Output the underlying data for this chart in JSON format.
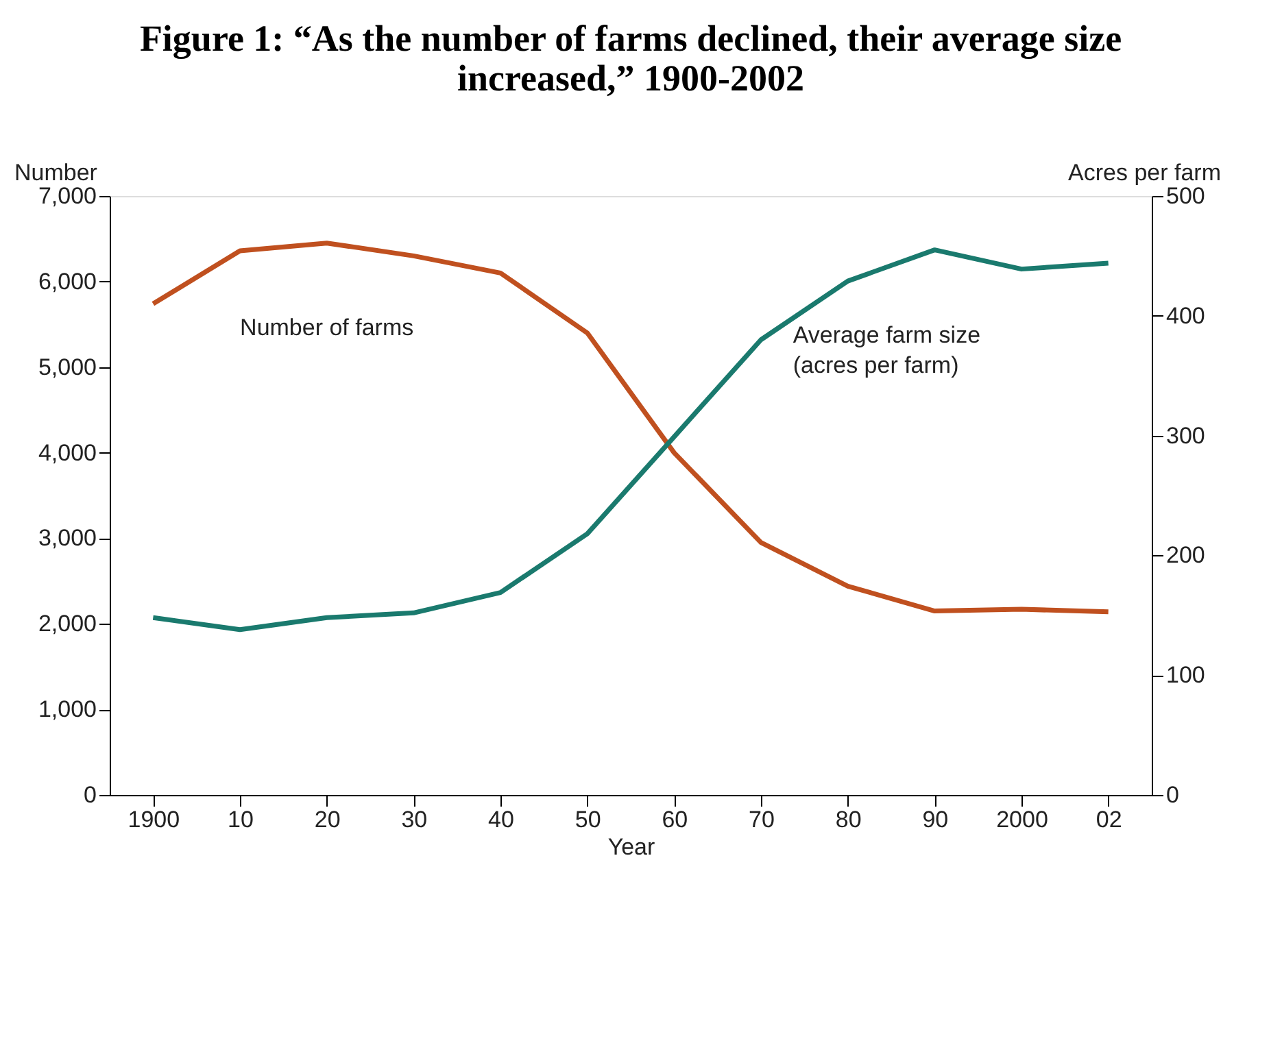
{
  "chart_data": {
    "type": "line",
    "title": "Figure 1: “As the number of farms declined, their average size increased,” 1900-2002",
    "xlabel": "Year",
    "ylabel": "Number",
    "y2label": "Acres per farm",
    "categories": [
      "1900",
      "10",
      "20",
      "30",
      "40",
      "50",
      "60",
      "70",
      "80",
      "90",
      "2000",
      "02"
    ],
    "series": [
      {
        "name": "Number of farms",
        "color": "#c0501f",
        "values": [
          5740,
          6360,
          6450,
          6300,
          6100,
          5400,
          4000,
          2950,
          2440,
          2150,
          2170,
          2140
        ]
      },
      {
        "name": "Average farm size (acres per farm)",
        "color": "#1a7a6e",
        "axis": "y2",
        "values": [
          148,
          138,
          148,
          152,
          169,
          218,
          299,
          380,
          429,
          455,
          439,
          444
        ]
      }
    ],
    "ylim": [
      0,
      7000
    ],
    "yticks": [
      0,
      {
        "value": 1000,
        "label": "1,000"
      },
      {
        "value": 2000,
        "label": "2,000"
      },
      {
        "value": 3000,
        "label": "3,000"
      },
      {
        "value": 4000,
        "label": "4,000"
      },
      {
        "value": 5000,
        "label": "5,000"
      },
      {
        "value": 6000,
        "label": "6,000"
      },
      {
        "value": 7000,
        "label": "7,000"
      }
    ],
    "y2lim": [
      0,
      500
    ],
    "y2ticks": [
      0,
      100,
      200,
      300,
      400,
      500
    ],
    "grid": false,
    "legend": false,
    "marker": "none",
    "line_style": "solid"
  }
}
